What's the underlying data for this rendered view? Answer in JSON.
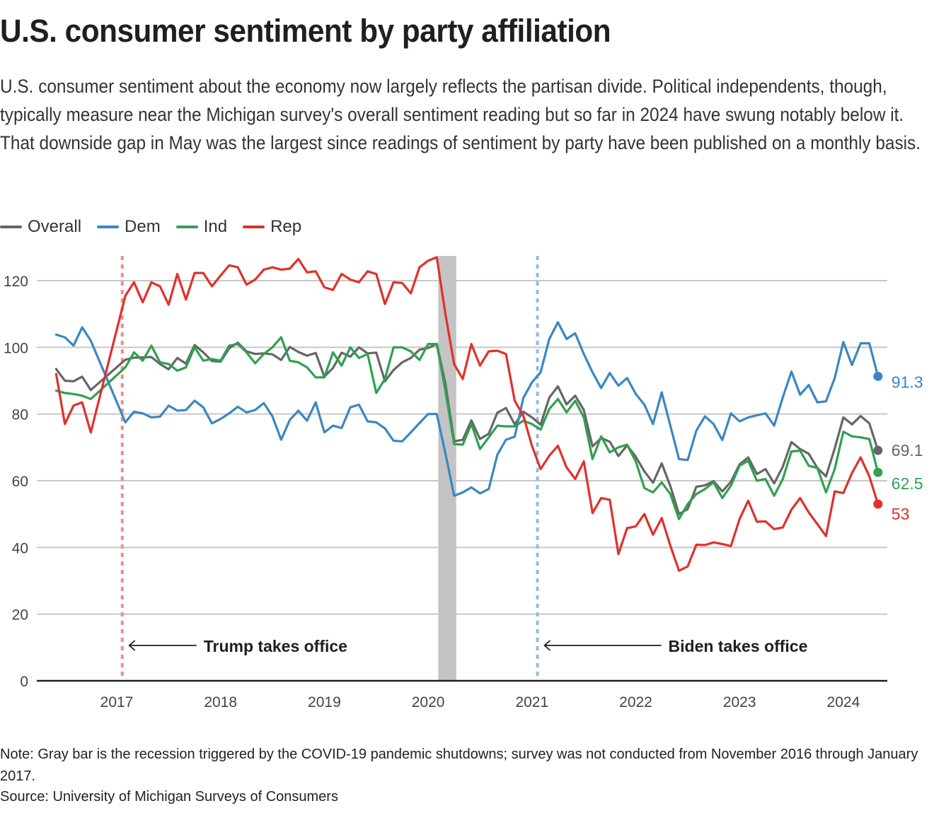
{
  "title": "U.S. consumer sentiment by party affiliation",
  "subtitle": "U.S. consumer sentiment about the economy now largely reflects the partisan divide. Political independents, though, typically measure near the Michigan survey's overall sentiment reading but so far in 2024 have swung notably below it. That downside gap in May was the largest since readings of sentiment by party have been published on a monthly basis.",
  "note": "Note: Gray bar is the recession triggered by the COVID-19 pandemic shutdowns; survey was not conducted from November 2016 through January 2017.",
  "source": "Source: University of Michigan Surveys of Consumers",
  "chart_data": {
    "type": "line",
    "title": "U.S. consumer sentiment by party affiliation",
    "xlabel": "",
    "ylabel": "",
    "ylim": [
      0,
      125
    ],
    "yticks": [
      0,
      20,
      40,
      60,
      80,
      100,
      120
    ],
    "xticks": [
      "2017",
      "2018",
      "2019",
      "2020",
      "2021",
      "2022",
      "2023",
      "2024"
    ],
    "grid": true,
    "legend": "top-left",
    "x_start": "2016-06",
    "x_end": "2024-05",
    "x_gap": [
      "2016-11",
      "2017-01"
    ],
    "x_months": [
      "2016-06",
      "2016-07",
      "2016-08",
      "2016-09",
      "2016-10",
      "2017-02",
      "2017-03",
      "2017-04",
      "2017-05",
      "2017-06",
      "2017-07",
      "2017-08",
      "2017-09",
      "2017-10",
      "2017-11",
      "2017-12",
      "2018-01",
      "2018-02",
      "2018-03",
      "2018-04",
      "2018-05",
      "2018-06",
      "2018-07",
      "2018-08",
      "2018-09",
      "2018-10",
      "2018-11",
      "2018-12",
      "2019-01",
      "2019-02",
      "2019-03",
      "2019-04",
      "2019-05",
      "2019-06",
      "2019-07",
      "2019-08",
      "2019-09",
      "2019-10",
      "2019-11",
      "2019-12",
      "2020-01",
      "2020-02",
      "2020-03",
      "2020-04",
      "2020-05",
      "2020-06",
      "2020-07",
      "2020-08",
      "2020-09",
      "2020-10",
      "2020-11",
      "2020-12",
      "2021-01",
      "2021-02",
      "2021-03",
      "2021-04",
      "2021-05",
      "2021-06",
      "2021-07",
      "2021-08",
      "2021-09",
      "2021-10",
      "2021-11",
      "2021-12",
      "2022-01",
      "2022-02",
      "2022-03",
      "2022-04",
      "2022-05",
      "2022-06",
      "2022-07",
      "2022-08",
      "2022-09",
      "2022-10",
      "2022-11",
      "2022-12",
      "2023-01",
      "2023-02",
      "2023-03",
      "2023-04",
      "2023-05",
      "2023-06",
      "2023-07",
      "2023-08",
      "2023-09",
      "2023-10",
      "2023-11",
      "2023-12",
      "2024-01",
      "2024-02",
      "2024-03",
      "2024-04",
      "2024-05"
    ],
    "series": [
      {
        "name": "Overall",
        "color": "#666666",
        "end_label": "69.1",
        "values": [
          93.5,
          90.0,
          89.8,
          91.2,
          87.2,
          96.3,
          96.9,
          97.0,
          97.1,
          95.0,
          93.4,
          96.8,
          95.1,
          100.7,
          98.5,
          95.9,
          95.7,
          99.7,
          101.4,
          98.8,
          98.0,
          98.2,
          97.9,
          96.2,
          100.1,
          98.6,
          97.5,
          98.3,
          91.2,
          93.8,
          98.4,
          97.2,
          100.0,
          98.2,
          98.4,
          89.8,
          93.2,
          95.5,
          96.8,
          99.3,
          99.8,
          101.0,
          89.1,
          71.8,
          72.3,
          78.1,
          72.5,
          74.1,
          80.4,
          81.8,
          76.9,
          80.7,
          79.0,
          76.8,
          84.9,
          88.3,
          82.9,
          85.5,
          81.2,
          70.3,
          72.8,
          71.7,
          67.4,
          70.6,
          67.2,
          62.8,
          59.4,
          65.2,
          58.4,
          50.0,
          51.5,
          58.2,
          58.6,
          59.9,
          56.8,
          59.7,
          64.9,
          67.0,
          62.0,
          63.5,
          59.2,
          64.2,
          71.6,
          69.5,
          68.1,
          63.8,
          61.3,
          69.7,
          79.0,
          76.9,
          79.4,
          77.2,
          69.1
        ]
      },
      {
        "name": "Dem",
        "color": "#3a87c2",
        "end_label": "91.3",
        "values": [
          103.8,
          103.0,
          100.5,
          106.0,
          102.0,
          77.5,
          80.7,
          80.2,
          79.0,
          79.2,
          82.5,
          81.0,
          81.2,
          84.0,
          82.0,
          77.2,
          78.5,
          80.2,
          82.2,
          80.5,
          81.2,
          83.3,
          79.3,
          72.3,
          78.2,
          81.0,
          78.0,
          83.5,
          74.5,
          76.5,
          75.8,
          82.0,
          82.8,
          77.8,
          77.5,
          75.7,
          72.0,
          71.8,
          74.5,
          77.3,
          80.0,
          80.0,
          68.2,
          55.5,
          56.5,
          58.0,
          56.2,
          57.5,
          67.8,
          72.3,
          73.2,
          84.8,
          89.5,
          92.5,
          102.5,
          107.5,
          102.5,
          104.2,
          98.0,
          92.5,
          87.8,
          92.3,
          88.5,
          90.8,
          86.0,
          82.8,
          77.0,
          86.5,
          76.5,
          66.5,
          66.2,
          75.0,
          79.3,
          77.0,
          72.2,
          80.2,
          77.8,
          79.0,
          79.6,
          80.2,
          76.5,
          85.0,
          92.7,
          85.8,
          88.7,
          83.5,
          83.8,
          90.8,
          101.6,
          94.7,
          101.2,
          101.2,
          91.3
        ]
      },
      {
        "name": "Ind",
        "color": "#2fa14f",
        "end_label": "62.5",
        "values": [
          87.0,
          86.3,
          86.0,
          85.5,
          84.5,
          94.0,
          98.5,
          96.0,
          100.5,
          95.5,
          95.0,
          93.0,
          94.0,
          100.0,
          96.0,
          96.5,
          96.0,
          100.5,
          101.0,
          98.5,
          95.2,
          98.0,
          100.0,
          103.0,
          96.0,
          95.5,
          94.0,
          91.0,
          91.0,
          98.5,
          94.5,
          100.0,
          96.8,
          98.0,
          86.3,
          90.5,
          100.0,
          100.0,
          98.8,
          96.2,
          101.0,
          101.0,
          87.0,
          71.0,
          70.8,
          77.0,
          69.5,
          73.0,
          76.5,
          76.3,
          76.3,
          78.0,
          77.0,
          75.3,
          81.5,
          84.5,
          80.5,
          84.0,
          79.0,
          66.5,
          73.3,
          68.5,
          70.0,
          70.8,
          65.8,
          57.8,
          56.5,
          59.5,
          56.0,
          48.5,
          53.0,
          56.0,
          57.5,
          59.5,
          54.8,
          58.5,
          64.5,
          66.0,
          60.0,
          60.5,
          55.5,
          60.5,
          68.8,
          69.0,
          64.5,
          63.8,
          56.5,
          63.5,
          74.7,
          73.3,
          73.0,
          72.5,
          62.5
        ]
      },
      {
        "name": "Rep",
        "color": "#e0312b",
        "end_label": "53",
        "values": [
          92.0,
          77.0,
          82.5,
          83.5,
          74.5,
          115.5,
          119.5,
          113.5,
          119.5,
          118.3,
          112.8,
          122.0,
          114.3,
          122.3,
          122.3,
          118.3,
          121.5,
          124.6,
          124.0,
          118.8,
          120.3,
          123.3,
          124.0,
          123.3,
          123.6,
          126.5,
          122.5,
          122.8,
          118.0,
          117.2,
          122.0,
          120.3,
          119.5,
          122.8,
          122.0,
          113.0,
          119.5,
          119.3,
          116.2,
          124.0,
          126.0,
          127.0,
          110.0,
          95.0,
          90.5,
          101.0,
          94.5,
          98.8,
          99.0,
          98.0,
          84.0,
          79.5,
          70.5,
          63.5,
          67.5,
          70.5,
          64.0,
          60.5,
          65.8,
          50.3,
          54.8,
          54.3,
          38.0,
          45.8,
          46.3,
          50.0,
          43.8,
          48.8,
          40.5,
          33.0,
          34.3,
          40.8,
          40.7,
          41.5,
          41.0,
          40.4,
          48.5,
          54.0,
          47.7,
          47.8,
          45.5,
          46.0,
          51.3,
          54.8,
          50.5,
          47.0,
          43.4,
          56.8,
          56.3,
          62.3,
          67.0,
          61.3,
          53.0
        ]
      }
    ],
    "shaded_regions": [
      {
        "label": "COVID-19 recession",
        "start": "2020-02",
        "end": "2020-04",
        "color": "#c4c4c4"
      }
    ],
    "reference_lines": [
      {
        "label": "Trump takes office",
        "x": "2017-01-20",
        "color": "#ee8f8b"
      },
      {
        "label": "Biden takes office",
        "x": "2021-01-20",
        "color": "#8fbde0"
      }
    ]
  }
}
